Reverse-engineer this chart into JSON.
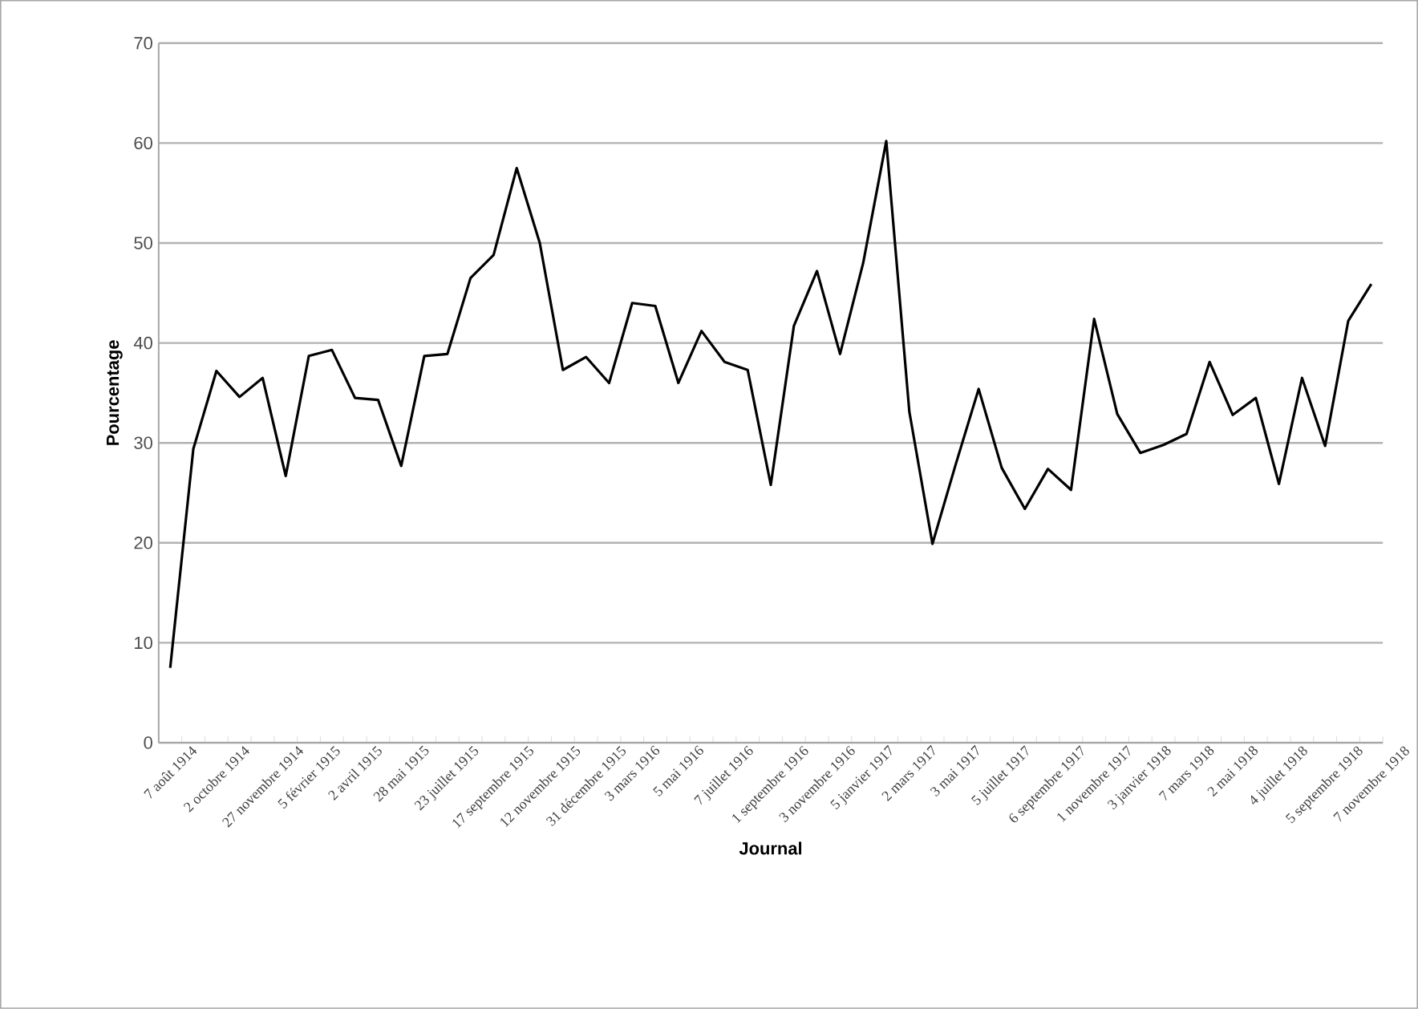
{
  "chart_data": {
    "type": "line",
    "xlabel": "Journal",
    "ylabel": "Pourcentage",
    "categories": [
      "7 août 1914",
      null,
      "2 octobre 1914",
      null,
      "27 novembre 1914",
      null,
      "5 février 1915",
      null,
      "2 avril 1915",
      null,
      "28 mai 1915",
      null,
      "23 juillet 1915",
      null,
      "17 septembre 1915",
      null,
      "12 novembre 1915",
      null,
      "31 décembre 1915",
      null,
      "3 mars 1916",
      null,
      "5 mai 1916",
      null,
      "7 juillet 1916",
      null,
      "1 septembre 1916",
      null,
      "3 novembre 1916",
      null,
      "5 janvier 1917",
      null,
      "2 mars 1917",
      null,
      "3 mai 1917",
      null,
      "5 juillet 1917",
      null,
      "6 septembre 1917",
      null,
      "1 novembre 1917",
      null,
      "3 janvier 1918",
      null,
      "7 mars 1918",
      null,
      "2 mai 1918",
      null,
      "4 juillet 1918",
      null,
      "5 septembre 1918",
      null,
      "7 novembre 1918"
    ],
    "series": [
      {
        "color": "#000000",
        "values": [
          7.5,
          29.4,
          37.2,
          34.6,
          36.5,
          26.7,
          38.7,
          39.3,
          34.5,
          34.3,
          27.7,
          38.7,
          38.9,
          46.5,
          48.8,
          57.5,
          50,
          37.3,
          38.6,
          36,
          44,
          43.7,
          36,
          41.2,
          38.1,
          37.3,
          25.8,
          41.7,
          47.2,
          38.9,
          48,
          60.2,
          33.1,
          19.9,
          27.8,
          35.4,
          27.5,
          23.4,
          27.4,
          25.3,
          42.4,
          32.9,
          29,
          29.8,
          30.9,
          38.1,
          32.8,
          34.5,
          25.9,
          36.5,
          29.7,
          42.2,
          45.9
        ]
      }
    ],
    "ylim": [
      0,
      70
    ],
    "yticks": [
      0,
      10,
      20,
      30,
      40,
      50,
      60,
      70
    ],
    "grid": "y"
  }
}
